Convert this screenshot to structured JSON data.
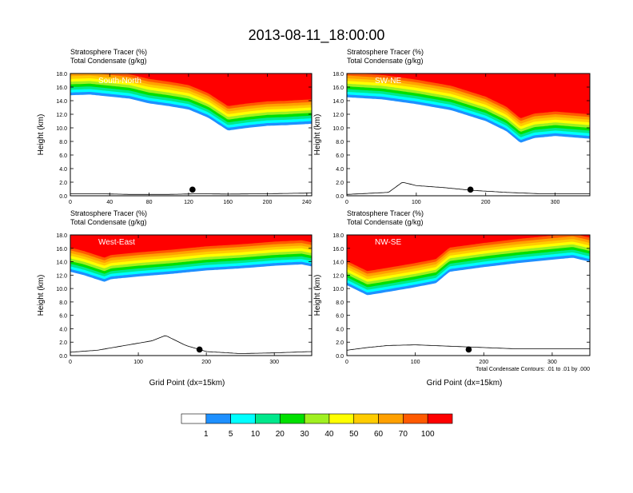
{
  "title": "2013-08-11_18:00:00",
  "chart_data": [
    {
      "type": "heatmap",
      "panel_label": "South-North",
      "subtitle_1": "Stratosphere Tracer   (%)",
      "subtitle_2": "Total Condensate   (g/kg)",
      "ylabel": "Height (km)",
      "xlabel": "",
      "xlim": [
        0,
        245
      ],
      "ylim": [
        0,
        18
      ],
      "xticks": [
        0,
        40,
        80,
        120,
        160,
        200,
        240
      ],
      "yticks": [
        "0.0",
        "2.0",
        "4.0",
        "6.0",
        "8.0",
        "10.0",
        "12.0",
        "14.0",
        "16.0",
        "18.0"
      ],
      "tracer_base_km": [
        [
          0,
          14.8
        ],
        [
          20,
          14.9
        ],
        [
          40,
          14.6
        ],
        [
          60,
          14.3
        ],
        [
          80,
          13.6
        ],
        [
          100,
          13.2
        ],
        [
          120,
          12.7
        ],
        [
          140,
          11.5
        ],
        [
          160,
          9.6
        ],
        [
          180,
          10.0
        ],
        [
          200,
          10.3
        ],
        [
          220,
          10.4
        ],
        [
          245,
          10.6
        ]
      ],
      "terrain_km": [
        [
          0,
          0.3
        ],
        [
          30,
          0.3
        ],
        [
          60,
          0.2
        ],
        [
          100,
          0.2
        ],
        [
          130,
          0.3
        ],
        [
          160,
          0.25
        ],
        [
          200,
          0.3
        ],
        [
          245,
          0.4
        ]
      ],
      "marker_x": 124
    },
    {
      "type": "heatmap",
      "panel_label": "SW-NE",
      "subtitle_1": "Stratosphere Tracer   (%)",
      "subtitle_2": "Total Condensate   (g/kg)",
      "ylabel": "Height (km)",
      "xlabel": "",
      "xlim": [
        0,
        350
      ],
      "ylim": [
        0,
        18
      ],
      "xticks": [
        0,
        100,
        200,
        300
      ],
      "yticks": [
        "0.0",
        "2.0",
        "4.0",
        "6.0",
        "8.0",
        "10.0",
        "12.0",
        "14.0",
        "16.0",
        "18.0"
      ],
      "tracer_base_km": [
        [
          0,
          14.5
        ],
        [
          50,
          14.2
        ],
        [
          100,
          13.5
        ],
        [
          150,
          12.6
        ],
        [
          200,
          11.0
        ],
        [
          230,
          9.5
        ],
        [
          250,
          7.8
        ],
        [
          270,
          8.5
        ],
        [
          300,
          8.8
        ],
        [
          350,
          8.4
        ]
      ],
      "terrain_km": [
        [
          0,
          0.2
        ],
        [
          60,
          0.5
        ],
        [
          80,
          2.0
        ],
        [
          100,
          1.5
        ],
        [
          140,
          1.2
        ],
        [
          180,
          0.8
        ],
        [
          230,
          0.5
        ],
        [
          280,
          0.3
        ],
        [
          350,
          0.3
        ]
      ],
      "marker_x": 178
    },
    {
      "type": "heatmap",
      "panel_label": "West-East",
      "subtitle_1": "Stratosphere Tracer   (%)",
      "subtitle_2": "Total Condensate   (g/kg)",
      "ylabel": "Height (km)",
      "xlabel": "Grid Point (dx=15km)",
      "xlim": [
        0,
        355
      ],
      "ylim": [
        0,
        18
      ],
      "xticks": [
        0,
        100,
        200,
        300
      ],
      "yticks": [
        "0.0",
        "2.0",
        "4.0",
        "6.0",
        "8.0",
        "10.0",
        "12.0",
        "14.0",
        "16.0",
        "18.0"
      ],
      "tracer_base_km": [
        [
          0,
          12.5
        ],
        [
          20,
          12.0
        ],
        [
          50,
          11.0
        ],
        [
          60,
          11.4
        ],
        [
          100,
          11.8
        ],
        [
          150,
          12.2
        ],
        [
          200,
          12.7
        ],
        [
          250,
          13.0
        ],
        [
          300,
          13.4
        ],
        [
          340,
          13.6
        ],
        [
          355,
          13.3
        ]
      ],
      "terrain_km": [
        [
          0,
          0.5
        ],
        [
          40,
          0.8
        ],
        [
          80,
          1.5
        ],
        [
          120,
          2.2
        ],
        [
          140,
          3.0
        ],
        [
          170,
          1.5
        ],
        [
          200,
          0.6
        ],
        [
          250,
          0.3
        ],
        [
          300,
          0.4
        ],
        [
          355,
          0.6
        ]
      ],
      "marker_x": 190
    },
    {
      "type": "heatmap",
      "panel_label": "NW-SE",
      "subtitle_1": "Stratosphere Tracer   (%)",
      "subtitle_2": "Total Condensate   (g/kg)",
      "ylabel": "Height (km)",
      "xlabel": "Grid Point (dx=15km)",
      "xlim": [
        0,
        355
      ],
      "ylim": [
        0,
        18
      ],
      "xticks": [
        0,
        100,
        200,
        300
      ],
      "yticks": [
        "0.0",
        "2.0",
        "4.0",
        "6.0",
        "8.0",
        "10.0",
        "12.0",
        "14.0",
        "16.0",
        "18.0"
      ],
      "tracer_base_km": [
        [
          0,
          10.5
        ],
        [
          30,
          9.0
        ],
        [
          60,
          9.5
        ],
        [
          100,
          10.2
        ],
        [
          130,
          10.8
        ],
        [
          150,
          12.5
        ],
        [
          200,
          13.2
        ],
        [
          250,
          13.8
        ],
        [
          300,
          14.3
        ],
        [
          330,
          14.6
        ],
        [
          355,
          14.0
        ]
      ],
      "terrain_km": [
        [
          0,
          0.8
        ],
        [
          30,
          1.2
        ],
        [
          60,
          1.5
        ],
        [
          100,
          1.6
        ],
        [
          150,
          1.4
        ],
        [
          200,
          1.2
        ],
        [
          250,
          1.0
        ],
        [
          300,
          1.0
        ],
        [
          355,
          1.0
        ]
      ],
      "marker_x": 178,
      "footnote": "Total Condensate Contours: .01 to .01 by .000"
    }
  ],
  "colorbar": {
    "levels": [
      "1",
      "5",
      "10",
      "20",
      "30",
      "40",
      "50",
      "60",
      "70",
      "100"
    ],
    "colors": [
      "#ffffff",
      "#1e90ff",
      "#00ffff",
      "#00e88c",
      "#00e000",
      "#a0f020",
      "#ffff00",
      "#ffcc00",
      "#ffa000",
      "#ff5a00",
      "#ff0000"
    ]
  }
}
